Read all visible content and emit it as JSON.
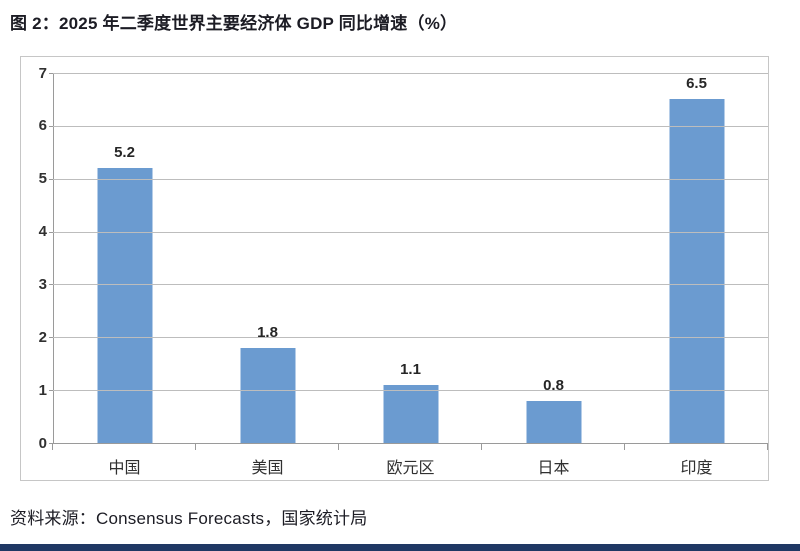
{
  "title": "图 2：2025 年二季度世界主要经济体 GDP 同比增速（%）",
  "source": "资料来源：Consensus Forecasts，国家统计局",
  "colors": {
    "bar": "#6B9BD0",
    "footer_rule": "#1F3864",
    "gridline": "#bdbdbd",
    "axis": "#9a9a9a",
    "text": "#1c1c24"
  },
  "chart_data": {
    "type": "bar",
    "title": "2025 年二季度世界主要经济体 GDP 同比增速（%）",
    "categories": [
      "中国",
      "美国",
      "欧元区",
      "日本",
      "印度"
    ],
    "values": [
      5.2,
      1.8,
      1.1,
      0.8,
      6.5
    ],
    "value_labels": [
      "5.2",
      "1.8",
      "1.1",
      "0.8",
      "6.5"
    ],
    "xlabel": "",
    "ylabel": "",
    "ylim": [
      0,
      7
    ],
    "yticks": [
      0,
      1,
      2,
      3,
      4,
      5,
      6,
      7
    ],
    "grid": true,
    "legend": false,
    "bar_color": "#6B9BD0"
  }
}
